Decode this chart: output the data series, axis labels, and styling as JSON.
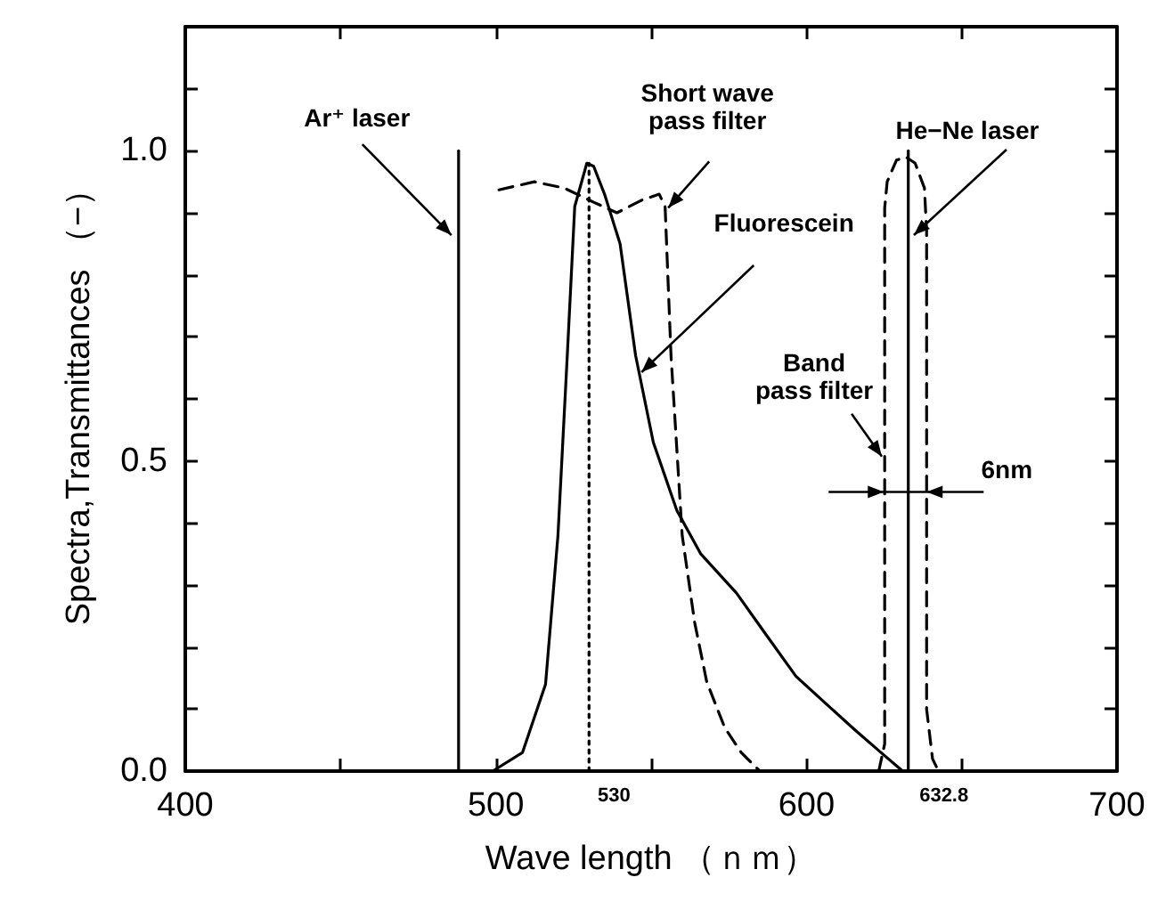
{
  "chart_data": {
    "type": "line",
    "xlabel": "Wave length （ｎｍ）",
    "ylabel": "Spectra,Transmittances （−）",
    "xlim": [
      400,
      700
    ],
    "xticks": [
      400,
      {
        "value": 450,
        "label": null
      },
      500,
      {
        "value": 550,
        "label": null
      },
      600,
      {
        "value": 650,
        "label": null
      },
      700
    ],
    "ylim": [
      0,
      1.2
    ],
    "yticks": [
      {
        "value": 0,
        "label": "0.0"
      },
      {
        "value": 0.1,
        "label": null
      },
      {
        "value": 0.2,
        "label": null
      },
      {
        "value": 0.3,
        "label": null
      },
      {
        "value": 0.4,
        "label": null
      },
      0.5,
      {
        "value": 0.6,
        "label": null
      },
      {
        "value": 0.7,
        "label": null
      },
      {
        "value": 0.8,
        "label": null
      },
      {
        "value": 0.9,
        "label": null
      },
      {
        "value": 1.0,
        "label": "1.0"
      },
      {
        "value": 1.1,
        "label": null
      }
    ],
    "grid": false,
    "marker": "none",
    "series": [
      {
        "color": "#000000",
        "line_style": "solid",
        "x": [
          488,
          488
        ],
        "values": [
          0,
          1.0
        ]
      },
      {
        "color": "#000000",
        "line_style": "solid",
        "x": [
          499,
          508.6,
          516,
          520,
          523,
          525.4,
          529.3,
          531.5,
          535,
          540,
          545,
          550.7,
          558.3,
          566,
          577.5,
          587,
          596.6,
          606,
          615.7,
          624,
          631
        ],
        "values": [
          0,
          0.03,
          0.14,
          0.38,
          0.67,
          0.91,
          0.98,
          0.975,
          0.93,
          0.85,
          0.67,
          0.53,
          0.42,
          0.35,
          0.287,
          0.22,
          0.153,
          0.11,
          0.066,
          0.03,
          0
        ]
      },
      {
        "color": "#000000",
        "line_style": "dashed",
        "x": [
          501,
          512.4,
          522,
          531.5,
          539,
          546.8,
          552.6,
          554.5,
          556.4,
          560,
          564,
          567.9,
          573.7,
          579,
          585
        ],
        "values": [
          0.937,
          0.95,
          0.94,
          0.917,
          0.9,
          0.92,
          0.93,
          0.91,
          0.67,
          0.38,
          0.24,
          0.144,
          0.07,
          0.03,
          0
        ]
      },
      {
        "color": "#000000",
        "line_style": "dotted",
        "x": [
          530,
          530
        ],
        "values": [
          0,
          0.98
        ]
      },
      {
        "color": "#000000",
        "line_style": "dashed",
        "x": [
          623.3,
          625.2,
          625.2,
          626,
          629,
          632,
          635,
          638,
          638.7,
          638.7,
          640.6,
          642.5
        ],
        "values": [
          0,
          0.044,
          0.908,
          0.95,
          0.985,
          0.99,
          0.98,
          0.94,
          0.87,
          0.1,
          0.02,
          0
        ]
      },
      {
        "color": "#000000",
        "line_style": "solid",
        "x": [
          632.8,
          632.8
        ],
        "values": [
          0,
          1.0
        ]
      }
    ],
    "annotations": [
      {
        "text": "Ar⁺ laser",
        "x": 485.7,
        "y": 0.864
      },
      {
        "text": "Short wave\npass filter",
        "x": 555.5,
        "y": 0.908
      },
      {
        "text": "Fluorescein",
        "x": 546.9,
        "y": 0.643
      },
      {
        "text": "Band\npass filter",
        "x": 624.3,
        "y": 0.507
      },
      {
        "text": "He−Ne laser",
        "x": 634.6,
        "y": 0.864
      },
      {
        "text": "6nm",
        "x": 638.7,
        "y": 0.45
      },
      {
        "text": "530",
        "x": 530,
        "y": 0
      },
      {
        "text": "632.8",
        "x": 632.8,
        "y": 0
      }
    ]
  }
}
